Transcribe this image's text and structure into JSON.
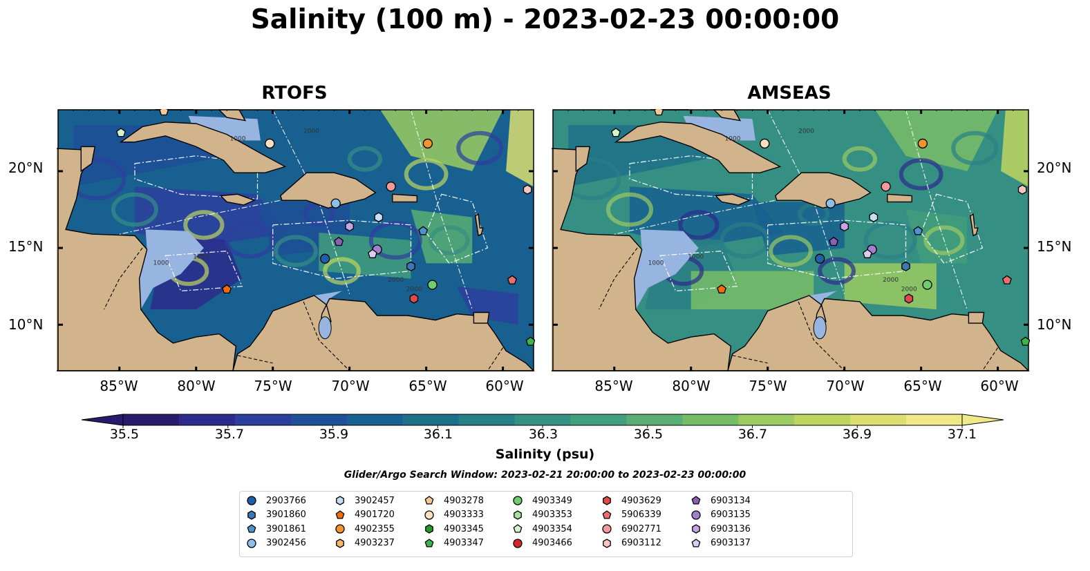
{
  "title": "Salinity (100 m) - 2023-02-23 00:00:00",
  "panels": [
    {
      "title": "RTOFS"
    },
    {
      "title": "AMSEAS"
    }
  ],
  "map_extent": {
    "lon": [
      -89,
      -58
    ],
    "lat": [
      7,
      24
    ]
  },
  "lat_ticks": [
    {
      "value": 20,
      "label": "20°N"
    },
    {
      "value": 15,
      "label": "15°N"
    },
    {
      "value": 10,
      "label": "10°N"
    }
  ],
  "lon_ticks": [
    {
      "value": -85,
      "label": "85°W"
    },
    {
      "value": -80,
      "label": "80°W"
    },
    {
      "value": -75,
      "label": "75°W"
    },
    {
      "value": -70,
      "label": "70°W"
    },
    {
      "value": -65,
      "label": "65°W"
    },
    {
      "value": -60,
      "label": "60°W"
    }
  ],
  "contour_labels": [
    "1000",
    "1000",
    "2000",
    "2000",
    "1000",
    "2000"
  ],
  "colorbar": {
    "label": "Salinity (psu)",
    "range": [
      35.5,
      37.1
    ],
    "ticks": [
      "35.5",
      "35.7",
      "35.9",
      "36.1",
      "36.3",
      "36.5",
      "36.7",
      "36.9",
      "37.1"
    ],
    "colors": [
      "#2a1a6b",
      "#2b2b8c",
      "#2d3f9e",
      "#1f4f97",
      "#18608f",
      "#1e7088",
      "#2a7f86",
      "#358f83",
      "#429e7c",
      "#58ae73",
      "#77bd67",
      "#9bcb62",
      "#bed561",
      "#dbde70",
      "#f1e887"
    ]
  },
  "search_window": "Glider/Argo Search Window: 2023-02-21 20:00:00 to 2023-02-23 00:00:00",
  "land_color": "#d2b48c",
  "shelf_color": "#98b4e0",
  "legend": [
    {
      "id": "2903766",
      "shape": "circle",
      "color": "#1f5fa8"
    },
    {
      "id": "3901860",
      "shape": "hexagon",
      "color": "#3a78b8"
    },
    {
      "id": "3901861",
      "shape": "pentagon",
      "color": "#4b94cf"
    },
    {
      "id": "3902456",
      "shape": "circle",
      "color": "#8dbfe8"
    },
    {
      "id": "3902457",
      "shape": "hexagon",
      "color": "#c2dff5"
    },
    {
      "id": "4901720",
      "shape": "pentagon",
      "color": "#f26b0f"
    },
    {
      "id": "4902355",
      "shape": "circle",
      "color": "#f39230"
    },
    {
      "id": "4903237",
      "shape": "hexagon",
      "color": "#f8b66a"
    },
    {
      "id": "4903278",
      "shape": "pentagon",
      "color": "#f8c896"
    },
    {
      "id": "4903333",
      "shape": "circle",
      "color": "#fbe0c0"
    },
    {
      "id": "4903345",
      "shape": "hexagon",
      "color": "#22982d"
    },
    {
      "id": "4903347",
      "shape": "pentagon",
      "color": "#3cb44a"
    },
    {
      "id": "4903349",
      "shape": "circle",
      "color": "#6fcc6f"
    },
    {
      "id": "4903353",
      "shape": "hexagon",
      "color": "#a2e39a"
    },
    {
      "id": "4903354",
      "shape": "pentagon",
      "color": "#d2f6cb"
    },
    {
      "id": "4903466",
      "shape": "circle",
      "color": "#d62728"
    },
    {
      "id": "4903629",
      "shape": "hexagon",
      "color": "#e04a4a"
    },
    {
      "id": "5906339",
      "shape": "pentagon",
      "color": "#ec6f6f"
    },
    {
      "id": "6902771",
      "shape": "circle",
      "color": "#f49a9a"
    },
    {
      "id": "6903112",
      "shape": "hexagon",
      "color": "#f9c4c4"
    },
    {
      "id": "6903134",
      "shape": "pentagon",
      "color": "#8a5fb4"
    },
    {
      "id": "6903135",
      "shape": "circle",
      "color": "#a57fcf"
    },
    {
      "id": "6903136",
      "shape": "hexagon",
      "color": "#c3a4e4"
    },
    {
      "id": "6903137",
      "shape": "pentagon",
      "color": "#dccbf3"
    }
  ],
  "platforms": [
    {
      "id": "4903354",
      "lon": -84.9,
      "lat": 22.5
    },
    {
      "id": "4903333",
      "lon": -75.2,
      "lat": 21.8
    },
    {
      "id": "4902355",
      "lon": -64.9,
      "lat": 21.8
    },
    {
      "id": "6902771",
      "lon": -67.3,
      "lat": 19.0
    },
    {
      "id": "6903112",
      "lon": -58.4,
      "lat": 18.8
    },
    {
      "id": "3902456",
      "lon": -70.9,
      "lat": 17.9
    },
    {
      "id": "3902457",
      "lon": -68.1,
      "lat": 17.0
    },
    {
      "id": "3901861",
      "lon": -65.2,
      "lat": 16.1
    },
    {
      "id": "6903136",
      "lon": -70.0,
      "lat": 16.4
    },
    {
      "id": "6903134",
      "lon": -70.7,
      "lat": 15.4
    },
    {
      "id": "6903135",
      "lon": -68.2,
      "lat": 14.9
    },
    {
      "id": "6903137",
      "lon": -68.5,
      "lat": 14.6
    },
    {
      "id": "2903766",
      "lon": -71.6,
      "lat": 14.3
    },
    {
      "id": "3901860",
      "lon": -66.0,
      "lat": 13.8
    },
    {
      "id": "4903349",
      "lon": -64.6,
      "lat": 12.6
    },
    {
      "id": "5906339",
      "lon": -59.4,
      "lat": 12.9
    },
    {
      "id": "4901720",
      "lon": -78.0,
      "lat": 12.3
    },
    {
      "id": "4903629",
      "lon": -65.8,
      "lat": 11.7
    },
    {
      "id": "4903347",
      "lon": -58.2,
      "lat": 8.9
    },
    {
      "id": "4903278",
      "lon": -82.1,
      "lat": 23.9
    }
  ]
}
